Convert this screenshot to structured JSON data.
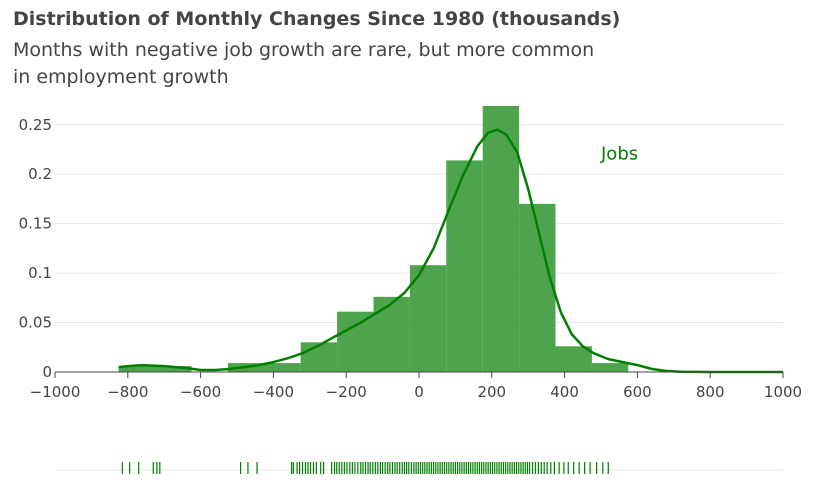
{
  "chart_data": {
    "type": "histogram",
    "title": "Distribution of Monthly Changes Since 1980 (thousands)",
    "subtitle_line1": "Months with negative job growth are rare, but more common",
    "subtitle_line2": "in employment growth",
    "series_label": "Jobs",
    "color": "#008000",
    "bar_color": "#3a9a3a",
    "xlim": [
      -1000,
      1000
    ],
    "ylim": [
      0,
      0.27
    ],
    "x_ticks": [
      -1000,
      -800,
      -600,
      -400,
      -200,
      0,
      200,
      400,
      600,
      800,
      1000
    ],
    "x_tick_labels": [
      "−1000",
      "−800",
      "−600",
      "−400",
      "−200",
      "0",
      "200",
      "400",
      "600",
      "800",
      "1000"
    ],
    "y_ticks": [
      0,
      0.05,
      0.1,
      0.15,
      0.2,
      0.25
    ],
    "y_tick_labels": [
      "0",
      "0.05",
      "0.1",
      "0.15",
      "0.2",
      "0.25"
    ],
    "bins": [
      {
        "x0": -825,
        "x1": -625,
        "value": 0.006
      },
      {
        "x0": -525,
        "x1": -325,
        "value": 0.009
      },
      {
        "x0": -325,
        "x1": -225,
        "value": 0.03
      },
      {
        "x0": -225,
        "x1": -125,
        "value": 0.061
      },
      {
        "x0": -125,
        "x1": -25,
        "value": 0.076
      },
      {
        "x0": -25,
        "x1": 75,
        "value": 0.108
      },
      {
        "x0": 75,
        "x1": 175,
        "value": 0.214
      },
      {
        "x0": 175,
        "x1": 275,
        "value": 0.269
      },
      {
        "x0": 275,
        "x1": 375,
        "value": 0.17
      },
      {
        "x0": 375,
        "x1": 475,
        "value": 0.026
      },
      {
        "x0": 475,
        "x1": 575,
        "value": 0.009
      }
    ],
    "kde": [
      [
        -825,
        0.005
      ],
      [
        -800,
        0.006
      ],
      [
        -760,
        0.007
      ],
      [
        -700,
        0.006
      ],
      [
        -640,
        0.004
      ],
      [
        -600,
        0.002
      ],
      [
        -560,
        0.002
      ],
      [
        -520,
        0.003
      ],
      [
        -480,
        0.005
      ],
      [
        -440,
        0.007
      ],
      [
        -400,
        0.01
      ],
      [
        -360,
        0.014
      ],
      [
        -320,
        0.019
      ],
      [
        -280,
        0.026
      ],
      [
        -240,
        0.034
      ],
      [
        -200,
        0.042
      ],
      [
        -160,
        0.05
      ],
      [
        -120,
        0.059
      ],
      [
        -80,
        0.068
      ],
      [
        -40,
        0.08
      ],
      [
        0,
        0.098
      ],
      [
        40,
        0.125
      ],
      [
        80,
        0.162
      ],
      [
        120,
        0.198
      ],
      [
        160,
        0.228
      ],
      [
        190,
        0.242
      ],
      [
        215,
        0.245
      ],
      [
        240,
        0.24
      ],
      [
        270,
        0.222
      ],
      [
        300,
        0.185
      ],
      [
        330,
        0.14
      ],
      [
        360,
        0.095
      ],
      [
        390,
        0.06
      ],
      [
        420,
        0.038
      ],
      [
        450,
        0.026
      ],
      [
        480,
        0.019
      ],
      [
        520,
        0.013
      ],
      [
        560,
        0.01
      ],
      [
        600,
        0.007
      ],
      [
        640,
        0.003
      ],
      [
        680,
        0.001
      ],
      [
        720,
        0.0003
      ],
      [
        800,
        0.0
      ],
      [
        900,
        0.0
      ],
      [
        1000,
        0.0
      ]
    ],
    "rug": [
      -815,
      -795,
      -770,
      -730,
      -720,
      -712,
      -490,
      -470,
      -445,
      -350,
      -345,
      -335,
      -328,
      -320,
      -312,
      -305,
      -298,
      -290,
      -282,
      -270,
      -262,
      -240,
      -232,
      -226,
      -219,
      -212,
      -205,
      -198,
      -190,
      -183,
      -176,
      -168,
      -160,
      -154,
      -147,
      -140,
      -134,
      -127,
      -120,
      -113,
      -106,
      -100,
      -93,
      -86,
      -80,
      -73,
      -66,
      -60,
      -53,
      -46,
      -40,
      -34,
      -28,
      -21,
      -14,
      -8,
      -2,
      4,
      10,
      16,
      22,
      28,
      34,
      40,
      46,
      52,
      58,
      64,
      70,
      76,
      82,
      88,
      94,
      100,
      106,
      112,
      118,
      124,
      130,
      136,
      142,
      148,
      154,
      160,
      166,
      172,
      178,
      184,
      190,
      196,
      202,
      208,
      214,
      220,
      226,
      232,
      238,
      244,
      250,
      256,
      262,
      268,
      274,
      280,
      286,
      292,
      298,
      304,
      312,
      320,
      328,
      336,
      344,
      352,
      362,
      372,
      385,
      398,
      410,
      425,
      440,
      455,
      470,
      488,
      505,
      520
    ]
  }
}
